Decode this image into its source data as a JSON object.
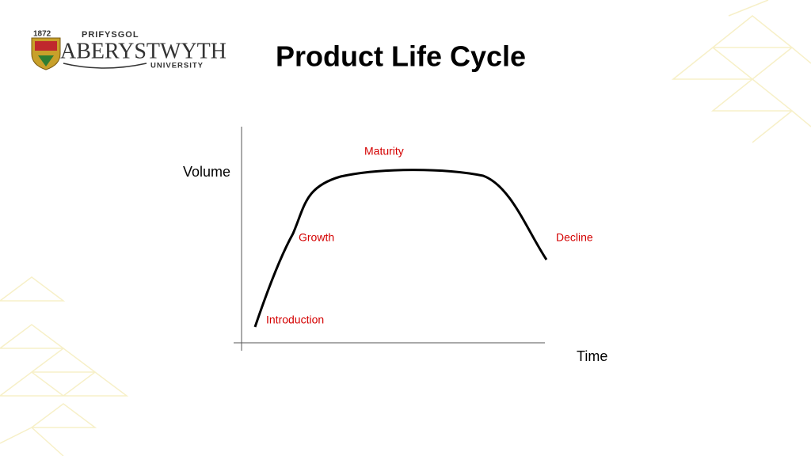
{
  "logo": {
    "year": "1872",
    "top": "PRIFYSGOL",
    "name": "ABERYSTWYTH",
    "bottom": "UNIVERSITY"
  },
  "title": "Product Life Cycle",
  "diagram": {
    "y_axis_label": "Volume",
    "x_axis_label": "Time",
    "stages": [
      "Introduction",
      "Growth",
      "Maturity",
      "Decline"
    ]
  }
}
